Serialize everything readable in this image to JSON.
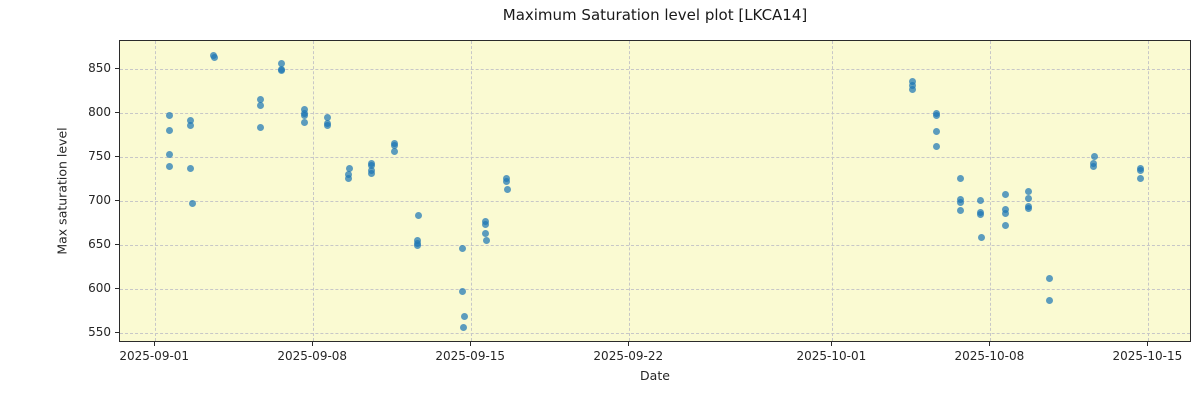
{
  "chart_data": {
    "type": "scatter",
    "title": "Maximum Saturation level plot [LKCA14]",
    "xlabel": "Date",
    "ylabel": "Max saturation level",
    "legend": "none",
    "grid": "dashed both axes",
    "plot_bg_color": "#FAFAD2",
    "marker_color": "#1f77b4",
    "marker_alpha": 0.72,
    "x_axis": {
      "epoch": "2025-09-01",
      "tick_labels": [
        "2025-09-01",
        "2025-09-08",
        "2025-09-15",
        "2025-09-22",
        "2025-10-01",
        "2025-10-08",
        "2025-10-15"
      ],
      "tick_day_offsets": [
        0,
        7,
        14,
        21,
        30,
        37,
        44
      ],
      "range_days": [
        -1.56,
        45.93
      ]
    },
    "y_axis": {
      "tick_values": [
        550,
        600,
        650,
        700,
        750,
        800,
        850
      ],
      "range": [
        538,
        882
      ]
    },
    "points_format": "[days_since_2025-09-01, max_saturation_level]",
    "points": [
      [
        0.65,
        797
      ],
      [
        0.65,
        780
      ],
      [
        0.65,
        753
      ],
      [
        0.65,
        739
      ],
      [
        1.58,
        791
      ],
      [
        1.58,
        786
      ],
      [
        1.58,
        737
      ],
      [
        1.66,
        697
      ],
      [
        2.59,
        865
      ],
      [
        2.62,
        863
      ],
      [
        4.64,
        815
      ],
      [
        4.64,
        809
      ],
      [
        4.64,
        783
      ],
      [
        5.61,
        856
      ],
      [
        5.61,
        850
      ],
      [
        5.61,
        848
      ],
      [
        6.63,
        804
      ],
      [
        6.63,
        800
      ],
      [
        6.63,
        797
      ],
      [
        6.63,
        789
      ],
      [
        7.62,
        795
      ],
      [
        7.62,
        788
      ],
      [
        7.64,
        786
      ],
      [
        8.6,
        737
      ],
      [
        8.58,
        730
      ],
      [
        8.58,
        726
      ],
      [
        9.56,
        743
      ],
      [
        9.56,
        740
      ],
      [
        9.56,
        735
      ],
      [
        9.56,
        731
      ],
      [
        10.59,
        765
      ],
      [
        10.59,
        763
      ],
      [
        10.62,
        756
      ],
      [
        11.65,
        683
      ],
      [
        11.63,
        655
      ],
      [
        11.63,
        651
      ],
      [
        11.63,
        649
      ],
      [
        13.63,
        646
      ],
      [
        13.63,
        597
      ],
      [
        13.68,
        568
      ],
      [
        13.65,
        556
      ],
      [
        14.65,
        676
      ],
      [
        14.65,
        673
      ],
      [
        14.62,
        663
      ],
      [
        14.68,
        655
      ],
      [
        15.58,
        725
      ],
      [
        15.58,
        722
      ],
      [
        15.6,
        713
      ],
      [
        33.56,
        836
      ],
      [
        33.56,
        831
      ],
      [
        33.56,
        827
      ],
      [
        34.63,
        800
      ],
      [
        34.63,
        797
      ],
      [
        34.63,
        779
      ],
      [
        34.63,
        762
      ],
      [
        35.67,
        725
      ],
      [
        35.67,
        702
      ],
      [
        35.67,
        698
      ],
      [
        35.67,
        689
      ],
      [
        36.55,
        700
      ],
      [
        36.57,
        687
      ],
      [
        36.57,
        684
      ],
      [
        36.62,
        658
      ],
      [
        37.68,
        707
      ],
      [
        37.65,
        690
      ],
      [
        37.65,
        686
      ],
      [
        37.68,
        672
      ],
      [
        38.7,
        711
      ],
      [
        38.68,
        703
      ],
      [
        38.67,
        694
      ],
      [
        38.67,
        691
      ],
      [
        39.6,
        611
      ],
      [
        39.6,
        586
      ],
      [
        41.6,
        750
      ],
      [
        41.58,
        743
      ],
      [
        41.58,
        739
      ],
      [
        43.63,
        737
      ],
      [
        43.63,
        734
      ],
      [
        43.65,
        726
      ]
    ]
  }
}
